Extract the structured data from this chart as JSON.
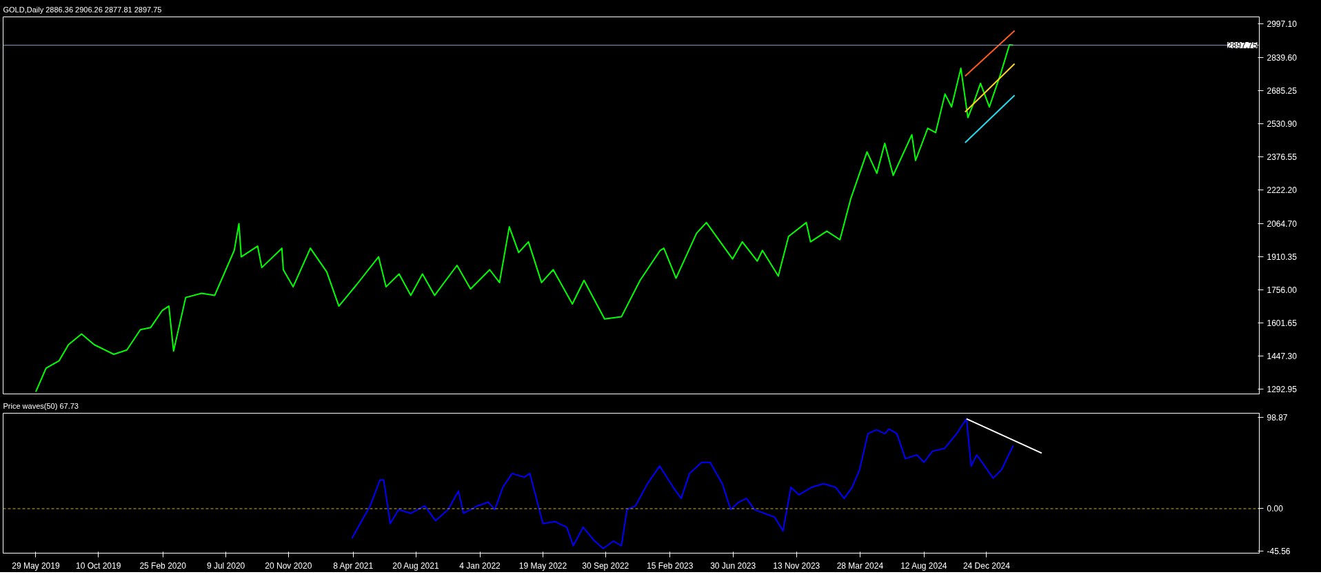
{
  "chart_data": [
    {
      "type": "line",
      "title": "GOLD,Daily  2886.36 2906.26 2877.81 2897.75",
      "series": [
        {
          "color": "#00ff00",
          "x": [
            "2019-05-29",
            "2019-06-20",
            "2019-07-18",
            "2019-08-07",
            "2019-09-04",
            "2019-10-01",
            "2019-11-12",
            "2019-12-10",
            "2020-01-08",
            "2020-01-30",
            "2020-02-24",
            "2020-03-09",
            "2020-03-19",
            "2020-04-14",
            "2020-05-18",
            "2020-06-15",
            "2020-07-27",
            "2020-08-06",
            "2020-08-11",
            "2020-09-15",
            "2020-09-24",
            "2020-11-06",
            "2020-11-09",
            "2020-11-30",
            "2021-01-06",
            "2021-02-10",
            "2021-03-08",
            "2021-04-15",
            "2021-06-01",
            "2021-06-17",
            "2021-07-15",
            "2021-08-09",
            "2021-09-03",
            "2021-09-29",
            "2021-11-16",
            "2021-12-15",
            "2022-01-25",
            "2022-02-15",
            "2022-03-08",
            "2022-03-28",
            "2022-04-18",
            "2022-05-16",
            "2022-06-10",
            "2022-07-21",
            "2022-08-15",
            "2022-09-28",
            "2022-11-03",
            "2022-12-13",
            "2023-01-25",
            "2023-02-02",
            "2023-02-28",
            "2023-04-13",
            "2023-05-04",
            "2023-06-29",
            "2023-07-20",
            "2023-08-21",
            "2023-09-01",
            "2023-10-05",
            "2023-10-27",
            "2023-12-04",
            "2023-12-13",
            "2024-01-17",
            "2024-02-14",
            "2024-03-08",
            "2024-04-12",
            "2024-05-03",
            "2024-05-20",
            "2024-06-07",
            "2024-07-17",
            "2024-07-25",
            "2024-08-20",
            "2024-09-06",
            "2024-09-26",
            "2024-10-10",
            "2024-10-30",
            "2024-11-14",
            "2024-11-25",
            "2024-12-11",
            "2024-12-30",
            "2025-01-24",
            "2025-02-11",
            "2025-02-19"
          ],
          "values": [
            1280,
            1390,
            1425,
            1500,
            1550,
            1500,
            1455,
            1475,
            1570,
            1580,
            1660,
            1680,
            1470,
            1720,
            1740,
            1730,
            1940,
            2065,
            1910,
            1960,
            1860,
            1950,
            1850,
            1770,
            1950,
            1840,
            1680,
            1780,
            1910,
            1770,
            1830,
            1730,
            1830,
            1730,
            1870,
            1760,
            1850,
            1790,
            2050,
            1930,
            1980,
            1790,
            1850,
            1690,
            1800,
            1620,
            1630,
            1800,
            1940,
            1950,
            1810,
            2020,
            2070,
            1900,
            1980,
            1890,
            1940,
            1820,
            2005,
            2070,
            1980,
            2030,
            1990,
            2180,
            2400,
            2300,
            2440,
            2290,
            2480,
            2360,
            2510,
            2490,
            2670,
            2610,
            2790,
            2560,
            2620,
            2720,
            2610,
            2770,
            2900,
            2898
          ]
        },
        {
          "color": "#ff5a1e",
          "x": [
            "2024-11-08",
            "2025-02-22"
          ],
          "values": [
            2753,
            2966
          ]
        },
        {
          "color": "#ffd21e",
          "x": [
            "2024-11-08",
            "2025-02-22"
          ],
          "values": [
            2586,
            2811
          ]
        },
        {
          "color": "#28dcf0",
          "x": [
            "2024-11-08",
            "2025-02-22"
          ],
          "values": [
            2443,
            2664
          ]
        }
      ],
      "ylim": [
        1270,
        3030
      ],
      "yticks": [
        {
          "value": 1292.95,
          "label": "1292.95"
        },
        {
          "value": 1447.3,
          "label": "1447.30"
        },
        {
          "value": 1601.65,
          "label": "1601.65"
        },
        {
          "value": 1756.0,
          "label": "1756.00"
        },
        {
          "value": 1910.35,
          "label": "1910.35"
        },
        {
          "value": 2064.7,
          "label": "2064.70"
        },
        {
          "value": 2222.2,
          "label": "2222.20"
        },
        {
          "value": 2376.55,
          "label": "2376.55"
        },
        {
          "value": 2530.9,
          "label": "2530.90"
        },
        {
          "value": 2685.25,
          "label": "2685.25"
        },
        {
          "value": 2839.6,
          "label": "2839.60"
        },
        {
          "value": 2997.1,
          "label": "2997.10"
        }
      ],
      "xlim": [
        "2019-03-20",
        "2026-07-31"
      ],
      "tick_labels": "y",
      "ref_lines": [
        {
          "axis": "y",
          "value": 2897.75,
          "label": "2897.75",
          "color": "#8c9cbf"
        }
      ]
    },
    {
      "type": "line",
      "title": "Price waves(50) 67.73",
      "series": [
        {
          "color": "#0000ff",
          "x": [
            "2021-04-05",
            "2021-04-26",
            "2021-05-14",
            "2021-06-04",
            "2021-06-12",
            "2021-06-26",
            "2021-07-14",
            "2021-08-09",
            "2021-09-08",
            "2021-10-01",
            "2021-10-28",
            "2021-11-19",
            "2021-11-30",
            "2021-12-30",
            "2022-01-22",
            "2022-02-05",
            "2022-02-22",
            "2022-03-14",
            "2022-04-09",
            "2022-04-21",
            "2022-05-19",
            "2022-06-14",
            "2022-07-09",
            "2022-07-23",
            "2022-08-13",
            "2022-09-07",
            "2022-09-25",
            "2022-10-17",
            "2022-11-03",
            "2022-11-15",
            "2022-12-03",
            "2022-12-29",
            "2023-01-24",
            "2023-02-22",
            "2023-03-11",
            "2023-03-29",
            "2023-04-24",
            "2023-05-12",
            "2023-06-07",
            "2023-06-25",
            "2023-07-12",
            "2023-07-29",
            "2023-08-15",
            "2023-09-10",
            "2023-09-27",
            "2023-10-15",
            "2023-11-01",
            "2023-11-18",
            "2023-12-15",
            "2024-01-10",
            "2024-02-05",
            "2024-02-23",
            "2024-03-11",
            "2024-03-27",
            "2024-04-14",
            "2024-05-02",
            "2024-05-20",
            "2024-05-29",
            "2024-06-15",
            "2024-07-03",
            "2024-07-28",
            "2024-08-12",
            "2024-08-30",
            "2024-09-25",
            "2024-10-21",
            "2024-11-11",
            "2024-11-21",
            "2024-12-03",
            "2024-12-20",
            "2025-01-07",
            "2025-01-25",
            "2025-02-19"
          ],
          "values": [
            -32,
            -13,
            3,
            31,
            31,
            -16,
            -1,
            -5,
            3,
            -13,
            -1,
            19,
            -5,
            3,
            7,
            -1,
            23,
            38,
            34,
            38,
            -16,
            -14,
            -20,
            -40,
            -20,
            -35,
            -43,
            -35,
            -40,
            -1,
            3,
            27,
            46,
            23,
            11,
            38,
            50,
            50,
            27,
            -1,
            7,
            11,
            -1,
            -6,
            -9,
            -24,
            23,
            15,
            23,
            27,
            23,
            11,
            23,
            42,
            81,
            85,
            81,
            86,
            81,
            54,
            58,
            50,
            62,
            65,
            81,
            97,
            46,
            58,
            46,
            33,
            42,
            68
          ]
        },
        {
          "color": "#ffffff",
          "x": [
            "2024-11-11",
            "2025-04-21"
          ],
          "values": [
            97,
            60
          ]
        }
      ],
      "ylim": [
        -48,
        103
      ],
      "yticks": [
        {
          "value": -45.56,
          "label": "-45.56"
        },
        {
          "value": 0,
          "label": "0.00"
        },
        {
          "value": 98.87,
          "label": "98.87"
        }
      ],
      "xlim": [
        "2019-03-20",
        "2026-07-31"
      ],
      "xticks": [
        {
          "value": "2019-05-29",
          "label": "29 May 2019"
        },
        {
          "value": "2019-10-10",
          "label": "10 Oct 2019"
        },
        {
          "value": "2020-02-25",
          "label": "25 Feb 2020"
        },
        {
          "value": "2020-07-09",
          "label": "9 Jul 2020"
        },
        {
          "value": "2020-11-20",
          "label": "20 Nov 2020"
        },
        {
          "value": "2021-04-08",
          "label": "8 Apr 2021"
        },
        {
          "value": "2021-08-20",
          "label": "20 Aug 2021"
        },
        {
          "value": "2022-01-04",
          "label": "4 Jan 2022"
        },
        {
          "value": "2022-05-19",
          "label": "19 May 2022"
        },
        {
          "value": "2022-09-30",
          "label": "30 Sep 2022"
        },
        {
          "value": "2023-02-15",
          "label": "15 Feb 2023"
        },
        {
          "value": "2023-06-30",
          "label": "30 Jun 2023"
        },
        {
          "value": "2023-11-13",
          "label": "13 Nov 2023"
        },
        {
          "value": "2024-03-28",
          "label": "28 Mar 2024"
        },
        {
          "value": "2024-08-12",
          "label": "12 Aug 2024"
        },
        {
          "value": "2024-12-24",
          "label": "24 Dec 2024"
        }
      ],
      "ref_lines": [
        {
          "axis": "y",
          "value": 0,
          "color": "#d2b400",
          "line_style": "dashed"
        }
      ]
    }
  ]
}
